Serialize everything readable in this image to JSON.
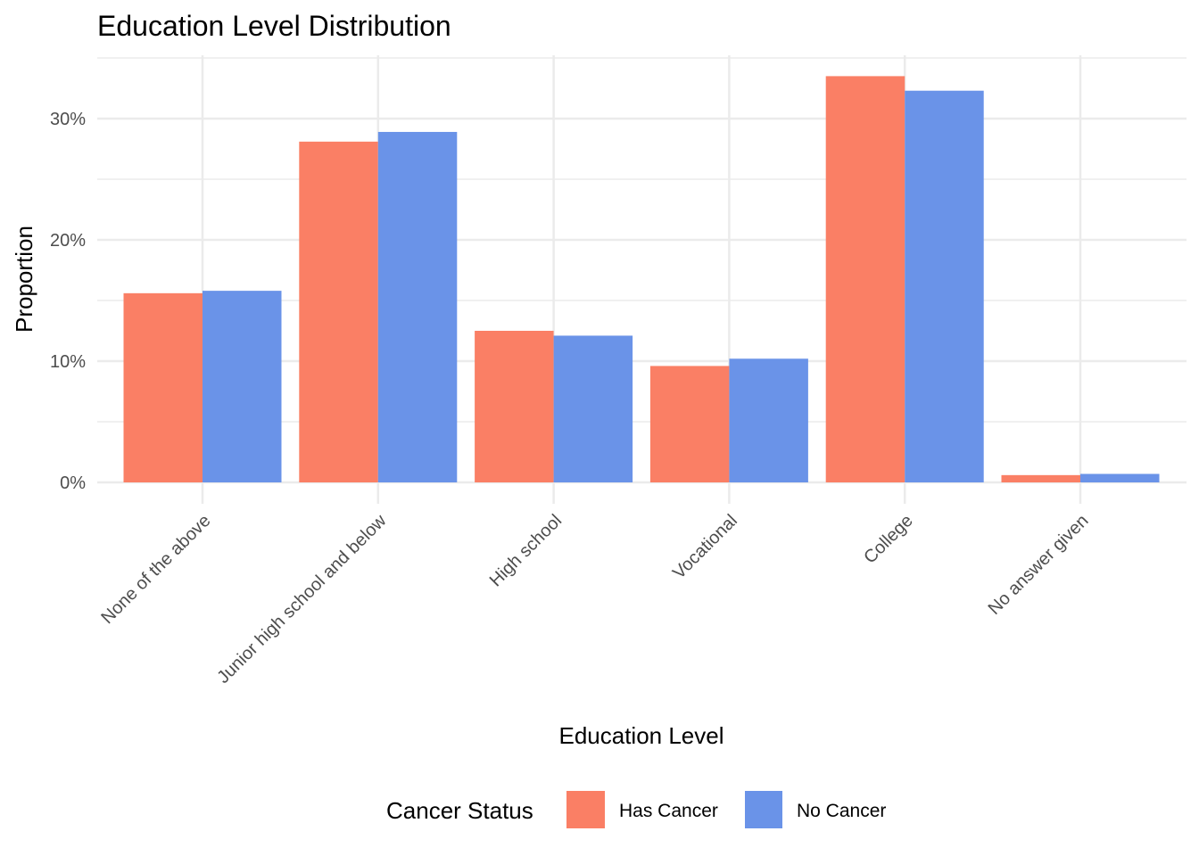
{
  "chart_data": {
    "type": "bar",
    "title": "Education Level Distribution",
    "xlabel": "Education Level",
    "ylabel": "Proportion",
    "ylim": [
      0,
      35
    ],
    "y_ticks": [
      0,
      10,
      20,
      30
    ],
    "y_tick_labels": [
      "0%",
      "10%",
      "20%",
      "30%"
    ],
    "grid": true,
    "categories": [
      "None of the above",
      "Junior high school and below",
      "High school",
      "Vocational",
      "College",
      "No answer given"
    ],
    "series": [
      {
        "name": "Has Cancer",
        "color": "#FA7F65",
        "values": [
          15.6,
          28.1,
          12.5,
          9.6,
          33.5,
          0.6
        ]
      },
      {
        "name": "No Cancer",
        "color": "#6A93E8",
        "values": [
          15.8,
          28.9,
          12.1,
          10.2,
          32.3,
          0.7
        ]
      }
    ],
    "legend": {
      "title": "Cancer Status",
      "position": "bottom"
    }
  }
}
